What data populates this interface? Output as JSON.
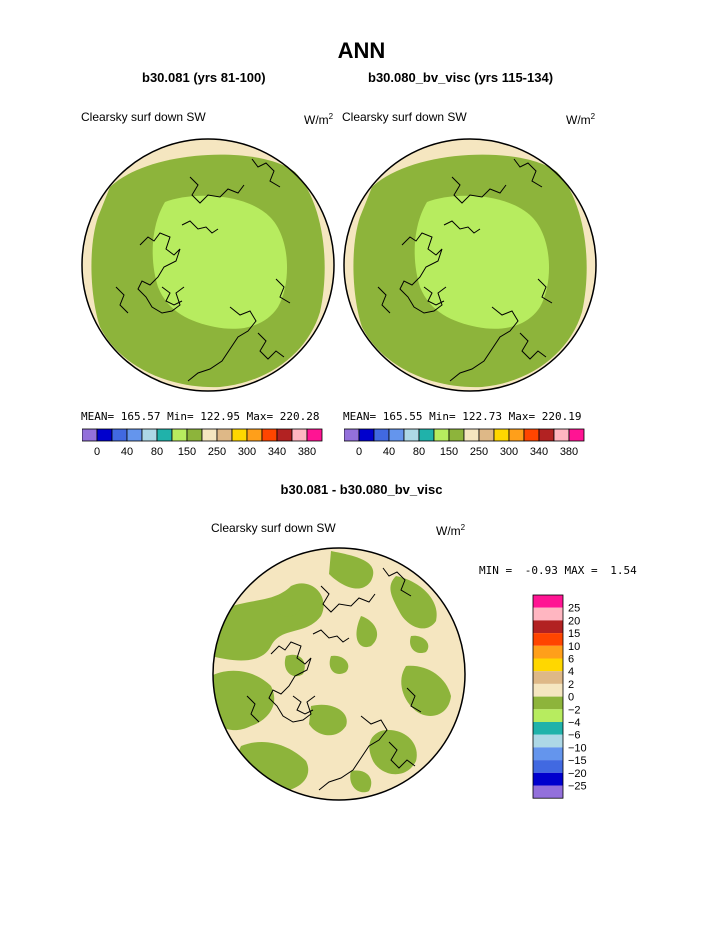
{
  "page_title": "ANN",
  "left_panel": {
    "case_title": "b30.081 (yrs 81-100)",
    "variable": "Clearsky surf down SW",
    "units_base": "W/m",
    "units_exp": "2",
    "stats": {
      "mean_label": "MEAN=",
      "mean": "165.57",
      "min_label": "Min=",
      "min": "122.95",
      "max_label": "Max=",
      "max": "220.28"
    }
  },
  "right_panel": {
    "case_title": "b30.080_bv_visc (yrs 115-134)",
    "variable": "Clearsky surf down SW",
    "units_base": "W/m",
    "units_exp": "2",
    "stats": {
      "mean_label": "MEAN=",
      "mean": "165.55",
      "min_label": "Min=",
      "min": "122.73",
      "max_label": "Max=",
      "max": "220.19"
    }
  },
  "diff_panel": {
    "case_title": "b30.081 - b30.080_bv_visc",
    "variable": "Clearsky surf down SW",
    "units_base": "W/m",
    "units_exp": "2",
    "stats": {
      "min_label": "MIN =",
      "min": "-0.93",
      "max_label": "MAX =",
      "max": "1.54"
    }
  },
  "abs_colorbar": {
    "colors": [
      "#9370db",
      "#0000cd",
      "#4169e1",
      "#6495ed",
      "#add8e6",
      "#20b2aa",
      "#b7ec5f",
      "#8db43b",
      "#f5e6c0",
      "#deb887",
      "#ffd700",
      "#ff9f1a",
      "#ff4500",
      "#b22222",
      "#ffb6c1",
      "#ff1493"
    ],
    "labels": [
      "0",
      "40",
      "80",
      "150",
      "250",
      "300",
      "340",
      "380"
    ]
  },
  "diff_colorbar": {
    "colors": [
      "#9370db",
      "#0000cd",
      "#4169e1",
      "#6495ed",
      "#add8e6",
      "#20b2aa",
      "#b7ec5f",
      "#8db43b",
      "#f5e6c0",
      "#deb887",
      "#ffd700",
      "#ff9f1a",
      "#ff4500",
      "#b22222",
      "#ffb6c1",
      "#ff1493"
    ],
    "labels": [
      "25",
      "20",
      "15",
      "10",
      "6",
      "4",
      "2",
      "0",
      "−2",
      "−4",
      "−6",
      "−10",
      "−15",
      "−20",
      "−25"
    ]
  },
  "map_colors": {
    "ocean_band": "#8db43b",
    "inner_cap": "#b7ec5f",
    "outer_rim": "#f5e6c0",
    "diff_background": "#f5e6c0",
    "diff_negative": "#8db43b",
    "coast": "#000000"
  }
}
